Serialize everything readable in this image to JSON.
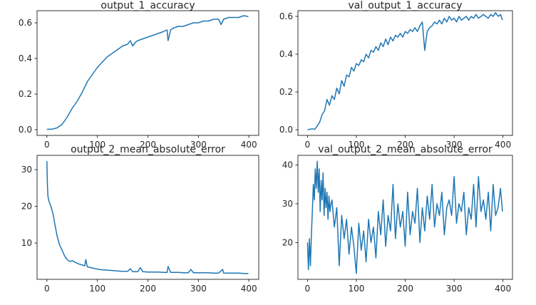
{
  "colors": {
    "series": "#1f77b4"
  },
  "chart_data": [
    {
      "type": "line",
      "title": "output_1_accuracy",
      "xlabel": "",
      "ylabel": "",
      "xlim": [
        -19.5,
        419.5
      ],
      "ylim": [
        -0.032,
        0.668
      ],
      "xticks": [
        0,
        100,
        200,
        300,
        400
      ],
      "xtick_labels": [
        "0",
        "100",
        "200",
        "300",
        "400"
      ],
      "yticks": [
        0.0,
        0.2,
        0.4,
        0.6
      ],
      "ytick_labels": [
        "0.0",
        "0.2",
        "0.4",
        "0.6"
      ],
      "grid": false,
      "series": [
        {
          "x": [
            0,
            10,
            20,
            30,
            40,
            50,
            60,
            70,
            80,
            90,
            100,
            110,
            120,
            130,
            140,
            150,
            160,
            165,
            170,
            175,
            180,
            190,
            200,
            210,
            220,
            230,
            238,
            240,
            245,
            250,
            260,
            270,
            280,
            290,
            300,
            310,
            320,
            330,
            340,
            345,
            350,
            360,
            370,
            380,
            390,
            399
          ],
          "y": [
            0.002,
            0.003,
            0.01,
            0.03,
            0.07,
            0.12,
            0.16,
            0.21,
            0.27,
            0.31,
            0.35,
            0.38,
            0.41,
            0.43,
            0.45,
            0.47,
            0.48,
            0.5,
            0.47,
            0.49,
            0.5,
            0.51,
            0.52,
            0.53,
            0.54,
            0.55,
            0.56,
            0.5,
            0.56,
            0.57,
            0.58,
            0.58,
            0.59,
            0.6,
            0.6,
            0.61,
            0.61,
            0.62,
            0.62,
            0.59,
            0.62,
            0.63,
            0.63,
            0.63,
            0.64,
            0.635
          ]
        }
      ]
    },
    {
      "type": "line",
      "title": "val_output_1_accuracy",
      "xlabel": "",
      "ylabel": "",
      "xlim": [
        -19.5,
        419.5
      ],
      "ylim": [
        -0.03,
        0.63
      ],
      "xticks": [
        0,
        100,
        200,
        300,
        400
      ],
      "xtick_labels": [
        "0",
        "100",
        "200",
        "300",
        "400"
      ],
      "yticks": [
        0.0,
        0.2,
        0.4,
        0.6
      ],
      "ytick_labels": [
        "0.0",
        "0.2",
        "0.4",
        "0.6"
      ],
      "grid": false,
      "series": [
        {
          "x": [
            0,
            10,
            15,
            20,
            25,
            30,
            35,
            40,
            45,
            50,
            55,
            60,
            65,
            70,
            75,
            80,
            85,
            90,
            95,
            100,
            105,
            110,
            115,
            120,
            125,
            130,
            135,
            140,
            145,
            150,
            155,
            160,
            165,
            170,
            175,
            180,
            185,
            190,
            195,
            200,
            205,
            210,
            215,
            220,
            225,
            230,
            235,
            240,
            245,
            250,
            255,
            260,
            265,
            270,
            275,
            280,
            285,
            290,
            295,
            300,
            305,
            310,
            315,
            320,
            325,
            330,
            335,
            340,
            345,
            350,
            355,
            360,
            365,
            370,
            375,
            380,
            385,
            390,
            395,
            399
          ],
          "y": [
            0.0,
            0.005,
            0.002,
            0.02,
            0.04,
            0.08,
            0.1,
            0.16,
            0.13,
            0.18,
            0.16,
            0.22,
            0.19,
            0.26,
            0.23,
            0.29,
            0.28,
            0.33,
            0.31,
            0.35,
            0.34,
            0.37,
            0.36,
            0.4,
            0.38,
            0.42,
            0.41,
            0.44,
            0.42,
            0.46,
            0.44,
            0.48,
            0.45,
            0.49,
            0.47,
            0.5,
            0.49,
            0.51,
            0.49,
            0.52,
            0.51,
            0.53,
            0.52,
            0.54,
            0.52,
            0.55,
            0.57,
            0.42,
            0.52,
            0.54,
            0.55,
            0.57,
            0.56,
            0.58,
            0.56,
            0.59,
            0.57,
            0.6,
            0.58,
            0.59,
            0.57,
            0.6,
            0.58,
            0.59,
            0.6,
            0.58,
            0.6,
            0.59,
            0.61,
            0.59,
            0.6,
            0.61,
            0.6,
            0.59,
            0.61,
            0.6,
            0.62,
            0.6,
            0.61,
            0.58
          ]
        }
      ]
    },
    {
      "type": "line",
      "title": "output_2_mean_absolute_error",
      "xlabel": "",
      "ylabel": "",
      "xlim": [
        -19.5,
        419.5
      ],
      "ylim": [
        0.1,
        33.9
      ],
      "xticks": [
        0,
        100,
        200,
        300,
        400
      ],
      "xtick_labels": [
        "0",
        "100",
        "200",
        "300",
        "400"
      ],
      "yticks": [
        10,
        20,
        30
      ],
      "ytick_labels": [
        "10",
        "20",
        "30"
      ],
      "grid": false,
      "series": [
        {
          "x": [
            0,
            1,
            2,
            3,
            5,
            8,
            12,
            16,
            20,
            25,
            30,
            35,
            40,
            45,
            50,
            55,
            60,
            65,
            70,
            75,
            77,
            80,
            90,
            100,
            110,
            120,
            130,
            140,
            150,
            160,
            165,
            170,
            180,
            185,
            190,
            200,
            210,
            220,
            230,
            238,
            240,
            245,
            250,
            260,
            270,
            280,
            285,
            290,
            300,
            310,
            320,
            330,
            340,
            348,
            350,
            360,
            370,
            380,
            390,
            399
          ],
          "y": [
            32.3,
            26,
            23,
            22,
            21,
            20,
            18,
            15,
            12,
            9.5,
            8,
            6.5,
            5.5,
            5,
            5.2,
            4.8,
            4.5,
            4.2,
            4,
            3.8,
            5.5,
            3.5,
            3.2,
            2.9,
            2.7,
            2.6,
            2.5,
            2.4,
            2.3,
            2.3,
            3.0,
            2.2,
            2.2,
            3.3,
            2.2,
            2.1,
            2.1,
            2.1,
            2.0,
            2.0,
            3.6,
            2.0,
            2.0,
            2.0,
            1.9,
            1.9,
            2.8,
            1.9,
            1.9,
            1.9,
            1.9,
            1.8,
            1.8,
            2.8,
            1.8,
            1.8,
            1.8,
            1.8,
            1.7,
            1.7
          ]
        }
      ]
    },
    {
      "type": "line",
      "title": "val_output_2_mean_absolute_error",
      "xlabel": "",
      "ylabel": "",
      "xlim": [
        -19.5,
        419.5
      ],
      "ylim": [
        10.5,
        42.5
      ],
      "xticks": [
        0,
        100,
        200,
        300,
        400
      ],
      "xtick_labels": [
        "0",
        "100",
        "200",
        "300",
        "400"
      ],
      "yticks": [
        20,
        30,
        40
      ],
      "ytick_labels": [
        "20",
        "30",
        "40"
      ],
      "grid": false,
      "series": [
        {
          "x": [
            0,
            2,
            4,
            6,
            8,
            10,
            12,
            14,
            16,
            18,
            20,
            22,
            24,
            26,
            28,
            30,
            32,
            34,
            36,
            38,
            40,
            42,
            44,
            46,
            48,
            50,
            55,
            60,
            65,
            70,
            75,
            80,
            85,
            90,
            95,
            100,
            105,
            110,
            115,
            120,
            125,
            130,
            135,
            140,
            145,
            150,
            155,
            160,
            165,
            170,
            175,
            180,
            185,
            190,
            195,
            200,
            205,
            210,
            215,
            220,
            225,
            230,
            235,
            240,
            245,
            250,
            255,
            260,
            265,
            270,
            275,
            280,
            285,
            290,
            295,
            300,
            305,
            310,
            315,
            320,
            325,
            330,
            335,
            340,
            345,
            350,
            355,
            360,
            365,
            370,
            375,
            380,
            385,
            390,
            395,
            399
          ],
          "y": [
            20,
            13,
            21,
            14,
            22,
            28,
            35,
            31,
            39,
            34,
            41,
            33,
            39,
            28,
            36,
            31,
            38,
            27,
            34,
            29,
            33,
            26,
            32,
            28,
            30,
            31,
            24,
            29,
            14,
            27,
            21,
            26,
            17,
            24,
            19,
            12,
            25,
            18,
            23,
            15,
            26,
            20,
            24,
            16,
            28,
            22,
            31,
            19,
            27,
            23,
            35,
            21,
            30,
            24,
            28,
            19,
            33,
            22,
            28,
            25,
            34,
            20,
            29,
            23,
            32,
            26,
            35,
            24,
            30,
            27,
            33,
            22,
            29,
            31,
            27,
            37,
            25,
            30,
            28,
            33,
            22,
            29,
            26,
            35,
            24,
            37,
            28,
            31,
            26,
            33,
            23,
            35,
            27,
            29,
            34,
            28
          ]
        }
      ]
    }
  ]
}
